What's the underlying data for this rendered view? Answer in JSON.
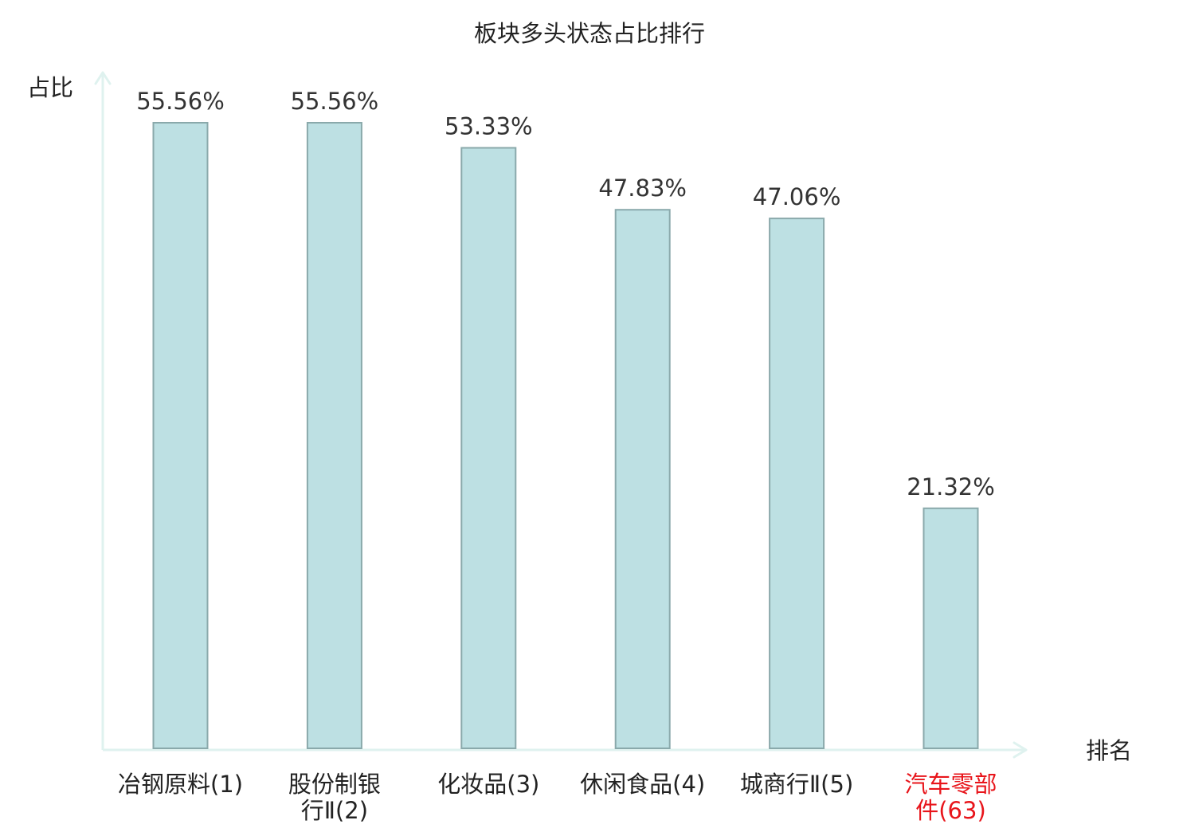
{
  "chart_data": {
    "type": "bar",
    "title": "板块多头状态占比排行",
    "ylabel": "占比",
    "xlabel": "排名",
    "categories": [
      {
        "lines": [
          "冶钢原料(1)"
        ],
        "highlight": false
      },
      {
        "lines": [
          "股份制银",
          "行Ⅱ(2)"
        ],
        "highlight": false
      },
      {
        "lines": [
          "化妆品(3)"
        ],
        "highlight": false
      },
      {
        "lines": [
          "休闲食品(4)"
        ],
        "highlight": false
      },
      {
        "lines": [
          "城商行Ⅱ(5)"
        ],
        "highlight": false
      },
      {
        "lines": [
          "汽车零部",
          "件(63)"
        ],
        "highlight": true
      }
    ],
    "values": [
      55.56,
      55.56,
      53.33,
      47.83,
      47.06,
      21.32
    ],
    "value_labels": [
      "55.56%",
      "55.56%",
      "53.33%",
      "47.83%",
      "47.06%",
      "21.32%"
    ],
    "ylim": [
      0,
      60
    ],
    "grid": false,
    "colors": {
      "bar_fill": "#bde0e3",
      "bar_stroke": "#8aa9ab",
      "axis": "#dff2ef",
      "text": "#222222",
      "value_text": "#333333",
      "highlight_text": "#e8151b"
    }
  }
}
